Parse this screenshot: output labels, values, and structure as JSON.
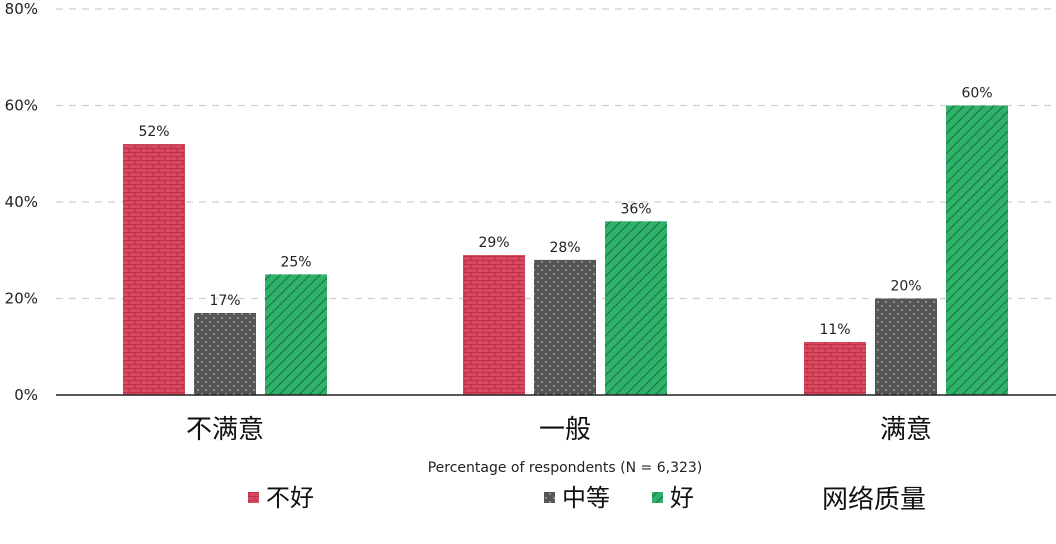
{
  "chart_data": {
    "type": "bar",
    "categories": [
      "不满意",
      "一般",
      "满意"
    ],
    "series": [
      {
        "name": "不好",
        "values": [
          52,
          29,
          11
        ],
        "color": "#d9485f",
        "pattern": "brick"
      },
      {
        "name": "中等",
        "values": [
          17,
          28,
          20
        ],
        "color": "#555555",
        "pattern": "dots"
      },
      {
        "name": "好",
        "values": [
          25,
          36,
          60
        ],
        "color": "#2fb36b",
        "pattern": "hatch"
      }
    ],
    "ylim": [
      0,
      80
    ],
    "yticks": [
      "0%",
      "20%",
      "40%",
      "60%",
      "80%"
    ],
    "value_suffix": "%",
    "xlabel": "Percentage of respondents (N = 6,323)",
    "legend_title": "网络质量",
    "legend_position": "bottom",
    "grid": "horizontal dashed"
  }
}
